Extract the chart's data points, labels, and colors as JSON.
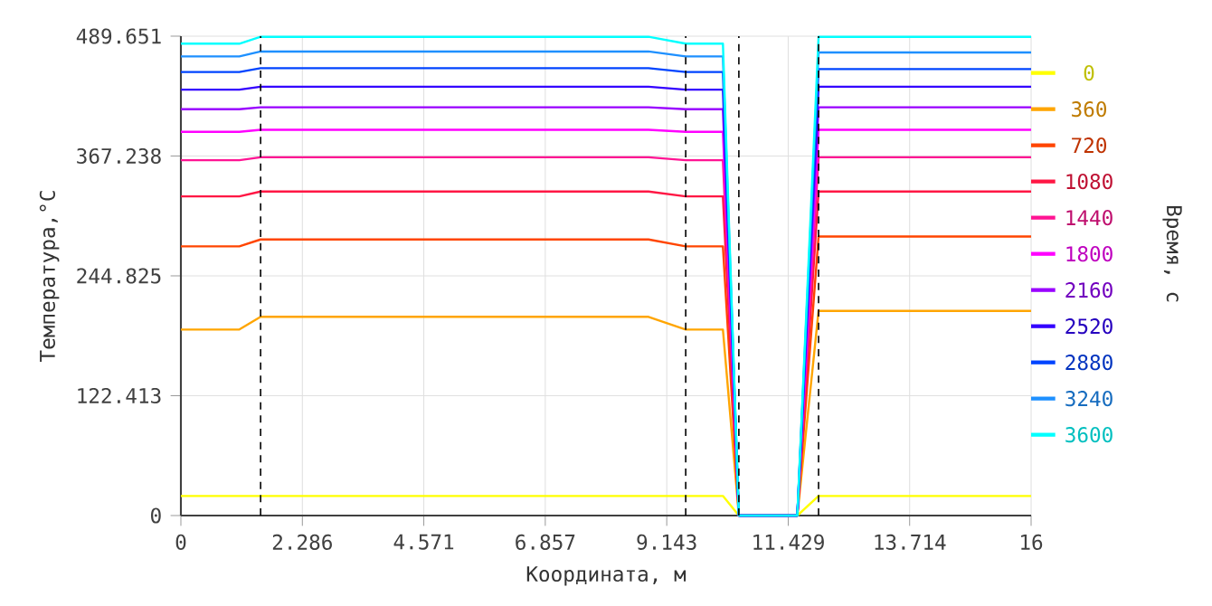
{
  "chart_data": {
    "type": "line",
    "xlabel": "Координата, м",
    "ylabel": "Температура,°C",
    "legend_title": "Время, с",
    "xlim": [
      0,
      16
    ],
    "ylim": [
      0,
      489.651
    ],
    "xticks": [
      0,
      2.286,
      4.571,
      6.857,
      9.143,
      11.429,
      13.714,
      16
    ],
    "yticks": [
      0,
      122.413,
      244.825,
      367.238,
      489.651
    ],
    "grid": true,
    "legend": "right",
    "line_style": "solid",
    "x": [
      0,
      1.1,
      1.5,
      8.8,
      9.5,
      10.2,
      10.5,
      11.6,
      12,
      16
    ],
    "series": [
      {
        "name": "0",
        "color": "#ffff00",
        "values": [
          20,
          20,
          20,
          20,
          20,
          20,
          0,
          0,
          20,
          20
        ]
      },
      {
        "name": "360",
        "color": "#ffa500",
        "values": [
          190,
          190,
          203,
          203,
          190,
          190,
          0,
          0,
          209,
          209
        ]
      },
      {
        "name": "720",
        "color": "#ff4500",
        "values": [
          275,
          275,
          282,
          282,
          275,
          275,
          0,
          0,
          285,
          285
        ]
      },
      {
        "name": "1080",
        "color": "#ff1744",
        "values": [
          326,
          326,
          331,
          331,
          326,
          326,
          0,
          0,
          331,
          331
        ]
      },
      {
        "name": "1440",
        "color": "#ff1493",
        "values": [
          363,
          363,
          366,
          366,
          363,
          363,
          0,
          0,
          366,
          366
        ]
      },
      {
        "name": "1800",
        "color": "#ff00ff",
        "values": [
          392,
          392,
          394,
          394,
          392,
          392,
          0,
          0,
          394,
          394
        ]
      },
      {
        "name": "2160",
        "color": "#9900ff",
        "values": [
          415,
          415,
          417,
          417,
          415,
          415,
          0,
          0,
          417,
          417
        ]
      },
      {
        "name": "2520",
        "color": "#3300ff",
        "values": [
          435,
          435,
          438,
          438,
          435,
          435,
          0,
          0,
          438,
          438
        ]
      },
      {
        "name": "2880",
        "color": "#0044ff",
        "values": [
          453,
          453,
          457,
          457,
          453,
          453,
          0,
          0,
          456,
          456
        ]
      },
      {
        "name": "3240",
        "color": "#1e90ff",
        "values": [
          469,
          469,
          474,
          474,
          469,
          469,
          0,
          0,
          473,
          473
        ]
      },
      {
        "name": "3600",
        "color": "#00ffff",
        "values": [
          482,
          482,
          489,
          489,
          482,
          482,
          0,
          0,
          489,
          489
        ]
      }
    ],
    "ref_lines": [
      {
        "axis": "x",
        "value": 1.5,
        "color": "#000000",
        "line_style": "dashed"
      },
      {
        "axis": "x",
        "value": 9.5,
        "color": "#000000",
        "line_style": "dashed"
      },
      {
        "axis": "x",
        "value": 10.5,
        "color": "#000000",
        "line_style": "dashed"
      },
      {
        "axis": "x",
        "value": 12,
        "color": "#000000",
        "line_style": "dashed"
      }
    ]
  }
}
